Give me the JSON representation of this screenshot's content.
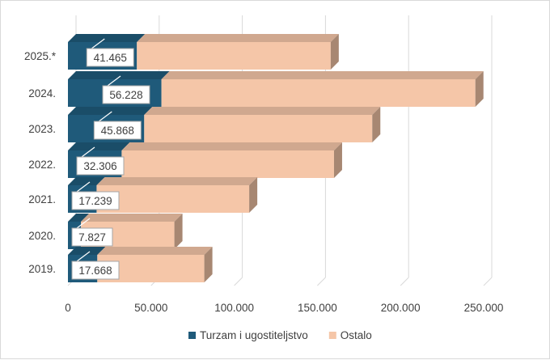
{
  "chart_data": {
    "type": "bar",
    "orientation": "horizontal",
    "stacked": true,
    "three_d": true,
    "title": "",
    "xlabel": "",
    "ylabel": "",
    "categories": [
      "2025.*",
      "2024.",
      "2023.",
      "2022.",
      "2021.",
      "2020.",
      "2019."
    ],
    "series": [
      {
        "name": "Turzam i ugostiteljstvo",
        "color": "#1f5a7a",
        "values": [
          41465,
          56228,
          45868,
          32306,
          17239,
          7827,
          17668
        ],
        "labels": [
          "41.465",
          "56.228",
          "45.868",
          "32.306",
          "17.239",
          "7.827",
          "17.668"
        ]
      },
      {
        "name": "Ostalo",
        "color": "#f5c6a8",
        "values": [
          116535,
          188772,
          137132,
          127694,
          91761,
          56173,
          64332
        ]
      }
    ],
    "xlim": [
      0,
      250000
    ],
    "ticks": [
      0,
      50000,
      100000,
      150000,
      200000,
      250000
    ],
    "tick_labels": [
      "0",
      "50.000",
      "100.000",
      "150.000",
      "200.000",
      "250.000"
    ],
    "grid": true,
    "legend_position": "bottom"
  }
}
